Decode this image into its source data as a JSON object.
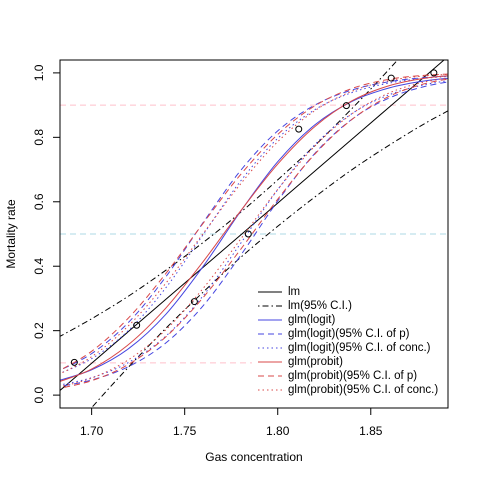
{
  "chart_data": {
    "type": "line",
    "xlabel": "Gas concentration",
    "ylabel": "Mortality rate",
    "xlim": [
      1.683,
      1.8915
    ],
    "ylim": [
      -0.04,
      1.04
    ],
    "xticks": [
      {
        "value": 1.7,
        "label": "1.70"
      },
      {
        "value": 1.75,
        "label": "1.75"
      },
      {
        "value": 1.8,
        "label": "1.80"
      },
      {
        "value": 1.85,
        "label": "1.85"
      }
    ],
    "yticks": [
      {
        "value": 0,
        "label": "0.0"
      },
      {
        "value": 0.2,
        "label": "0.2"
      },
      {
        "value": 0.4,
        "label": "0.4"
      },
      {
        "value": 0.6,
        "label": "0.6"
      },
      {
        "value": 0.8,
        "label": "0.8"
      },
      {
        "value": 1,
        "label": "1.0"
      }
    ],
    "hlines": [
      {
        "value": 0.9,
        "color": "#ffc0cb"
      },
      {
        "value": 0.5,
        "color": "#add8e6"
      },
      {
        "value": 0.1,
        "color": "#ffc0cb"
      }
    ],
    "points": {
      "x": [
        1.6907,
        1.7242,
        1.7552,
        1.7842,
        1.8113,
        1.8369,
        1.861,
        1.8839
      ],
      "y": [
        0.1017,
        0.2167,
        0.2903,
        0.5,
        0.8254,
        0.8983,
        0.9839,
        1.0
      ]
    },
    "x": [
      1.68,
      1.7,
      1.72,
      1.74,
      1.76,
      1.78,
      1.8,
      1.82,
      1.84,
      1.86,
      1.88,
      1.9
    ],
    "series": [
      {
        "name": "lm",
        "color": "#000000",
        "lty": "solid",
        "values": [
          -0.0004,
          0.099,
          0.1984,
          0.2978,
          0.3972,
          0.4966,
          0.596,
          0.6954,
          0.7948,
          0.8942,
          0.9936,
          1.093
        ]
      },
      {
        "name": "lm(95% C.I.)",
        "color": "#000000",
        "lty": "dotdash",
        "lower": [
          -0.173,
          -0.039,
          0.088,
          0.208,
          0.32,
          0.427,
          0.524,
          0.615,
          0.7,
          0.776,
          0.846,
          0.908
        ],
        "upper": [
          0.173,
          0.237,
          0.308,
          0.388,
          0.474,
          0.567,
          0.668,
          0.775,
          0.89,
          1.012,
          1.142,
          1.278
        ]
      },
      {
        "name": "glm(logit)",
        "color": "#4545e0",
        "lty": "solid",
        "values": [
          0.0413,
          0.0787,
          0.1448,
          0.2516,
          0.4001,
          0.5698,
          0.7243,
          0.8391,
          0.9119,
          0.9536,
          0.976,
          0.9878
        ]
      },
      {
        "name": "glm(logit)(95% C.I. of p)",
        "color": "#4545e0",
        "lty": "dashed",
        "lower": [
          0.0242,
          0.0469,
          0.089,
          0.1624,
          0.2779,
          0.4332,
          0.6025,
          0.7504,
          0.8566,
          0.9222,
          0.9593,
          0.979
        ],
        "upper": [
          0.0694,
          0.1288,
          0.2268,
          0.3682,
          0.5362,
          0.6966,
          0.82,
          0.9003,
          0.9472,
          0.9727,
          0.986,
          0.9929
        ]
      },
      {
        "name": "glm(logit)(95% C.I. of conc.)",
        "color": "#4545e0",
        "lty": "dotted",
        "lower": [
          0.028,
          0.0541,
          0.1019,
          0.1839,
          0.309,
          0.4703,
          0.6378,
          0.7775,
          0.874,
          0.9323,
          0.9647,
          0.9819
        ],
        "upper": [
          0.0603,
          0.113,
          0.2017,
          0.334,
          0.4988,
          0.664,
          0.7968,
          0.886,
          0.9391,
          0.9684,
          0.9838,
          0.9918
        ]
      },
      {
        "name": "glm(probit)",
        "color": "#d94848",
        "lty": "solid",
        "values": [
          0.0364,
          0.0809,
          0.1577,
          0.2709,
          0.4149,
          0.5711,
          0.717,
          0.8337,
          0.9136,
          0.9606,
          0.9843,
          0.9946
        ]
      },
      {
        "name": "glm(probit)(95% C.I. of p)",
        "color": "#d94848",
        "lty": "dashed",
        "lower": [
          0.0181,
          0.0447,
          0.0961,
          0.1814,
          0.3033,
          0.4518,
          0.608,
          0.7483,
          0.8561,
          0.9276,
          0.968,
          0.9877
        ],
        "upper": [
          0.0676,
          0.1359,
          0.2407,
          0.3783,
          0.5339,
          0.684,
          0.8089,
          0.8978,
          0.9518,
          0.9802,
          0.9929,
          0.9978
        ]
      },
      {
        "name": "glm(probit)(95% C.I. of conc.)",
        "color": "#d94848",
        "lty": "dotted",
        "lower": [
          0.022,
          0.0527,
          0.1105,
          0.2033,
          0.3318,
          0.4836,
          0.6383,
          0.7731,
          0.8735,
          0.938,
          0.9733,
          0.99
        ],
        "upper": [
          0.0577,
          0.1192,
          0.2165,
          0.3483,
          0.502,
          0.6551,
          0.7864,
          0.8828,
          0.9433,
          0.976,
          0.9912,
          0.9972
        ]
      }
    ]
  }
}
